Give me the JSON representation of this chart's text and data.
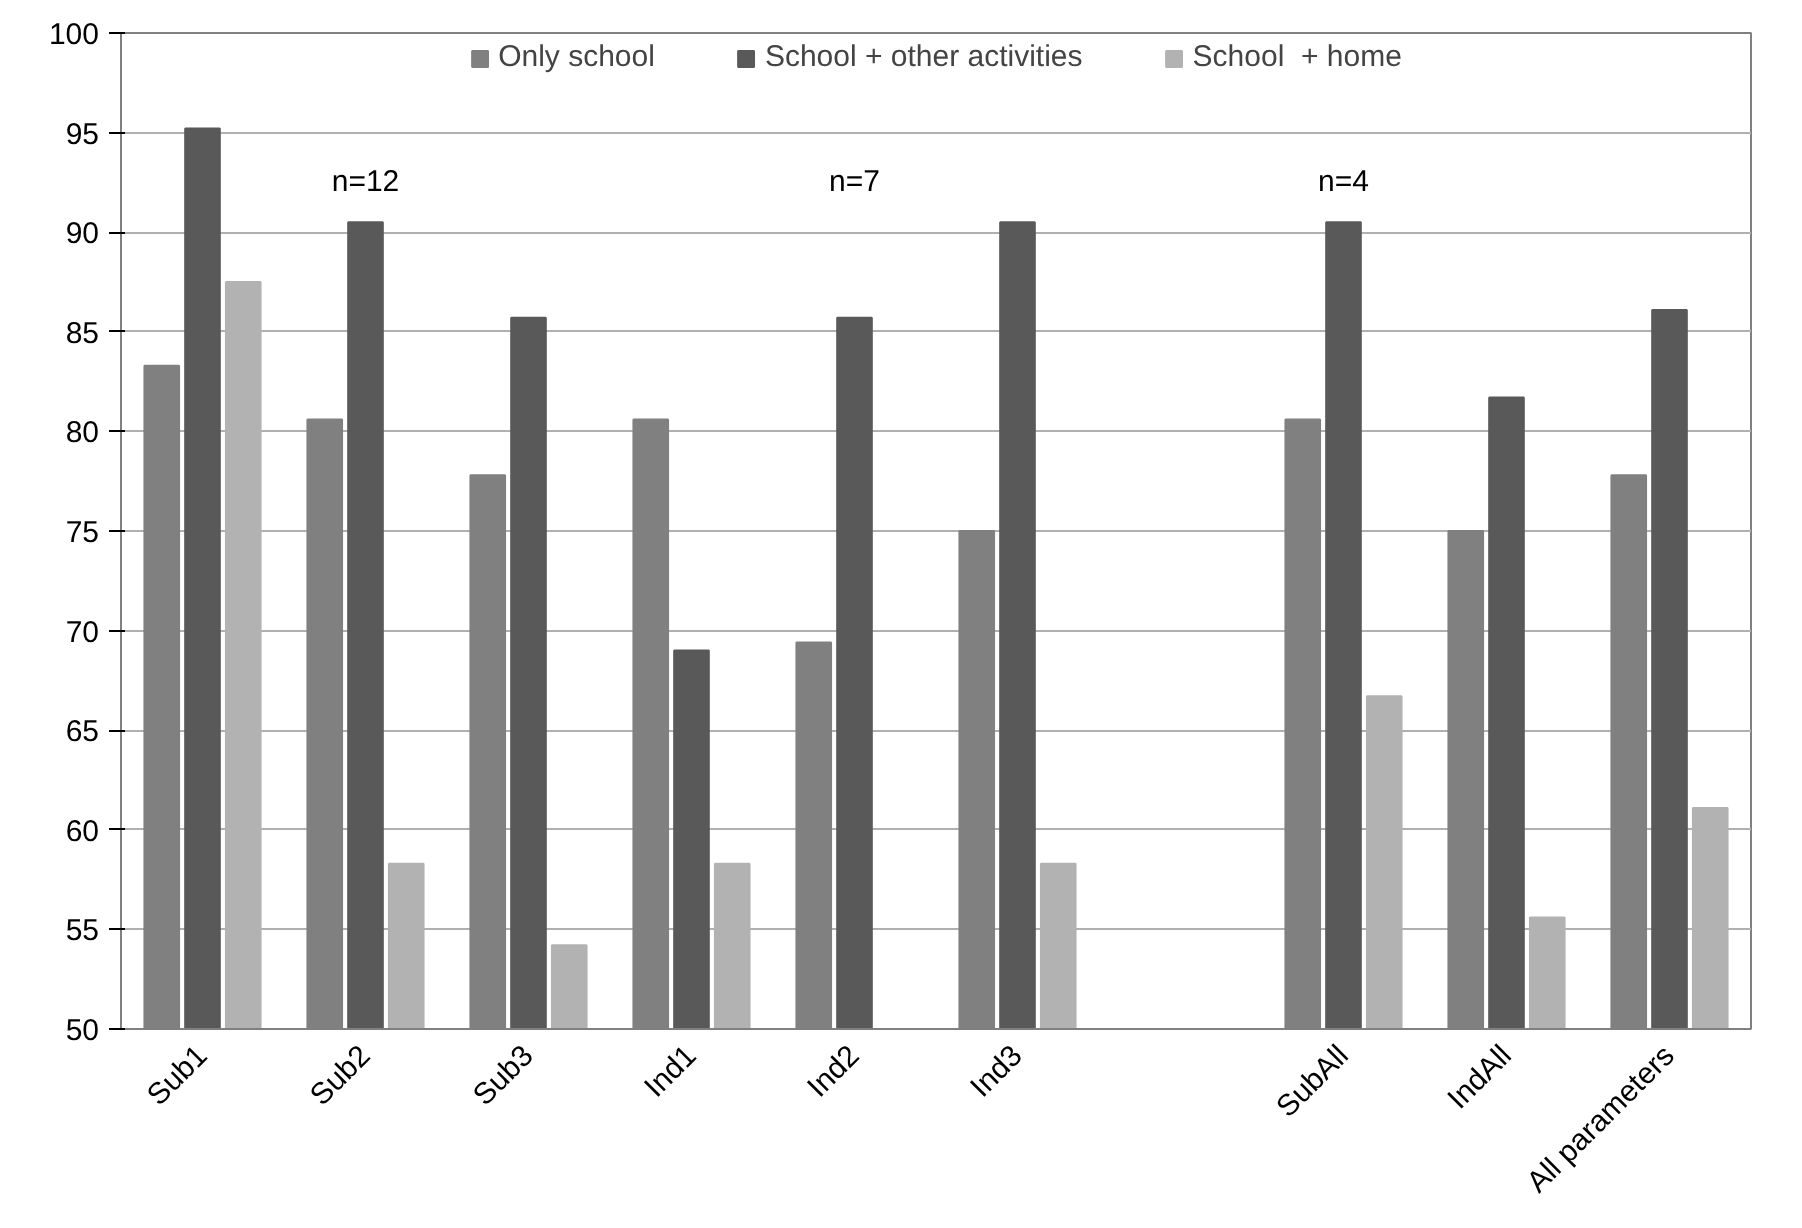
{
  "chart_data": {
    "type": "bar",
    "categories": [
      "Sub1",
      "Sub2",
      "Sub3",
      "Ind1",
      "Ind2",
      "Ind3",
      null,
      "SubAll",
      "IndAll",
      "All parameters"
    ],
    "series": [
      {
        "name": "Only school",
        "color": "#808080",
        "values": [
          83.3,
          80.6,
          77.8,
          80.6,
          69.4,
          75.0,
          null,
          80.6,
          75.0,
          77.8
        ]
      },
      {
        "name": "School + other activities",
        "color": "#595959",
        "values": [
          95.2,
          90.5,
          85.7,
          69.0,
          85.7,
          90.5,
          null,
          90.5,
          81.7,
          86.1
        ]
      },
      {
        "name": "School  + home",
        "color": "#b2b2b2",
        "values": [
          87.5,
          58.3,
          54.2,
          58.3,
          null,
          58.3,
          null,
          66.7,
          55.6,
          61.1
        ]
      }
    ],
    "ylim": [
      50,
      100
    ],
    "yticks": [
      50,
      55,
      60,
      65,
      70,
      75,
      80,
      85,
      90,
      95,
      100
    ],
    "grid": "y",
    "legend": "top",
    "annotations": [
      "n=12",
      "n=7",
      "n=4"
    ]
  }
}
